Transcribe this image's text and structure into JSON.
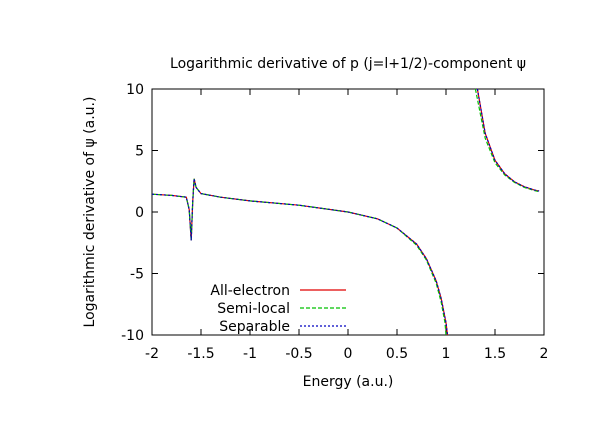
{
  "chart_data": {
    "type": "line",
    "title": "Logarithmic derivative of p (j=l+1/2)-component ψ",
    "xlabel": "Energy (a.u.)",
    "ylabel": "Logarithmic derivative of ψ (a.u.)",
    "xlim": [
      -2,
      2
    ],
    "ylim": [
      -10,
      10
    ],
    "xticks": [
      "-2",
      "-1.5",
      "-1",
      "-0.5",
      "0",
      "0.5",
      "1",
      "1.5",
      "2"
    ],
    "yticks": [
      "10",
      "5",
      "0",
      "-5",
      "-10"
    ],
    "grid": false,
    "legend_position": "bottom-left",
    "series": [
      {
        "name": "All-electron",
        "color": "#e00000",
        "style": "solid",
        "segments": [
          [
            [
              -2.0,
              1.45
            ],
            [
              -1.8,
              1.35
            ],
            [
              -1.65,
              1.2
            ],
            [
              -1.62,
              0.2
            ],
            [
              -1.6,
              -2.3
            ],
            [
              -1.585,
              0.8
            ],
            [
              -1.57,
              2.7
            ],
            [
              -1.55,
              2.0
            ],
            [
              -1.5,
              1.5
            ],
            [
              -1.3,
              1.2
            ],
            [
              -1.0,
              0.9
            ],
            [
              -0.5,
              0.55
            ],
            [
              0.0,
              0.0
            ],
            [
              0.3,
              -0.55
            ],
            [
              0.5,
              -1.3
            ],
            [
              0.7,
              -2.6
            ],
            [
              0.8,
              -3.8
            ],
            [
              0.9,
              -5.6
            ],
            [
              0.95,
              -7.0
            ],
            [
              1.0,
              -9.0
            ],
            [
              1.015,
              -10.0
            ]
          ],
          [
            [
              1.32,
              10.0
            ],
            [
              1.4,
              6.4
            ],
            [
              1.5,
              4.2
            ],
            [
              1.6,
              3.1
            ],
            [
              1.7,
              2.45
            ],
            [
              1.8,
              2.05
            ],
            [
              1.9,
              1.8
            ],
            [
              1.95,
              1.7
            ]
          ]
        ]
      },
      {
        "name": "Semi-local",
        "color": "#00c000",
        "style": "dashed",
        "segments": [
          [
            [
              -2.0,
              1.45
            ],
            [
              -1.8,
              1.35
            ],
            [
              -1.65,
              1.2
            ],
            [
              -1.62,
              0.2
            ],
            [
              -1.6,
              -2.3
            ],
            [
              -1.585,
              0.8
            ],
            [
              -1.57,
              2.7
            ],
            [
              -1.55,
              2.0
            ],
            [
              -1.5,
              1.5
            ],
            [
              -1.3,
              1.2
            ],
            [
              -1.0,
              0.9
            ],
            [
              -0.5,
              0.55
            ],
            [
              0.0,
              0.0
            ],
            [
              0.3,
              -0.55
            ],
            [
              0.5,
              -1.3
            ],
            [
              0.7,
              -2.7
            ],
            [
              0.8,
              -3.9
            ],
            [
              0.9,
              -5.8
            ],
            [
              0.95,
              -7.3
            ],
            [
              0.99,
              -9.0
            ],
            [
              1.0,
              -10.0
            ]
          ],
          [
            [
              1.3,
              10.0
            ],
            [
              1.4,
              6.0
            ],
            [
              1.5,
              4.0
            ],
            [
              1.6,
              3.0
            ],
            [
              1.7,
              2.4
            ],
            [
              1.8,
              2.0
            ],
            [
              1.9,
              1.75
            ],
            [
              1.95,
              1.65
            ]
          ]
        ]
      },
      {
        "name": "Separable",
        "color": "#0000c0",
        "style": "dotted",
        "segments": [
          [
            [
              -2.0,
              1.45
            ],
            [
              -1.8,
              1.35
            ],
            [
              -1.65,
              1.2
            ],
            [
              -1.62,
              0.2
            ],
            [
              -1.6,
              -2.3
            ],
            [
              -1.585,
              0.8
            ],
            [
              -1.57,
              2.7
            ],
            [
              -1.55,
              2.0
            ],
            [
              -1.5,
              1.5
            ],
            [
              -1.3,
              1.2
            ],
            [
              -1.0,
              0.9
            ],
            [
              -0.5,
              0.55
            ],
            [
              0.0,
              0.0
            ],
            [
              0.3,
              -0.55
            ],
            [
              0.5,
              -1.3
            ],
            [
              0.7,
              -2.6
            ],
            [
              0.8,
              -3.8
            ],
            [
              0.9,
              -5.6
            ],
            [
              0.95,
              -7.0
            ],
            [
              1.0,
              -9.0
            ],
            [
              1.015,
              -10.0
            ]
          ],
          [
            [
              1.32,
              10.0
            ],
            [
              1.4,
              6.4
            ],
            [
              1.5,
              4.2
            ],
            [
              1.6,
              3.1
            ],
            [
              1.7,
              2.45
            ],
            [
              1.8,
              2.05
            ],
            [
              1.9,
              1.8
            ],
            [
              1.95,
              1.7
            ]
          ]
        ]
      }
    ]
  }
}
